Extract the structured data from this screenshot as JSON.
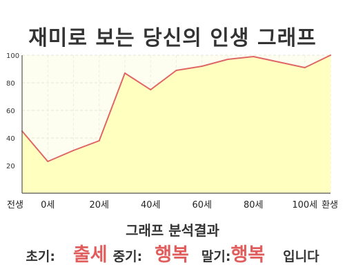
{
  "chart_data": {
    "type": "area",
    "title": "재미로 보는 당신의 인생 그래프",
    "x": [
      "전생",
      "0세",
      "",
      "20세",
      "",
      "40세",
      "",
      "60세",
      "",
      "80세",
      "",
      "100세",
      "환생"
    ],
    "values": [
      45,
      23,
      31,
      38,
      87,
      75,
      89,
      92,
      97,
      99,
      95,
      91,
      100
    ],
    "xtick_labels": [
      "전생",
      "0세",
      "20세",
      "40세",
      "60세",
      "80세",
      "100세",
      "환생"
    ],
    "ylim": [
      0,
      100
    ],
    "yticks": [
      20,
      40,
      60,
      80,
      100
    ],
    "grid": true,
    "legend": "none",
    "colors": {
      "line": "#e06666",
      "fill": "#ffffc0",
      "plot_background": "#fefef0"
    }
  },
  "summary": {
    "heading": "그래프 분석결과",
    "early_label": "초기:",
    "early_value": "출세",
    "mid_label": "중기:",
    "mid_value": "행복",
    "late_label": "말기:",
    "late_value": "행복",
    "ending": "입니다"
  }
}
